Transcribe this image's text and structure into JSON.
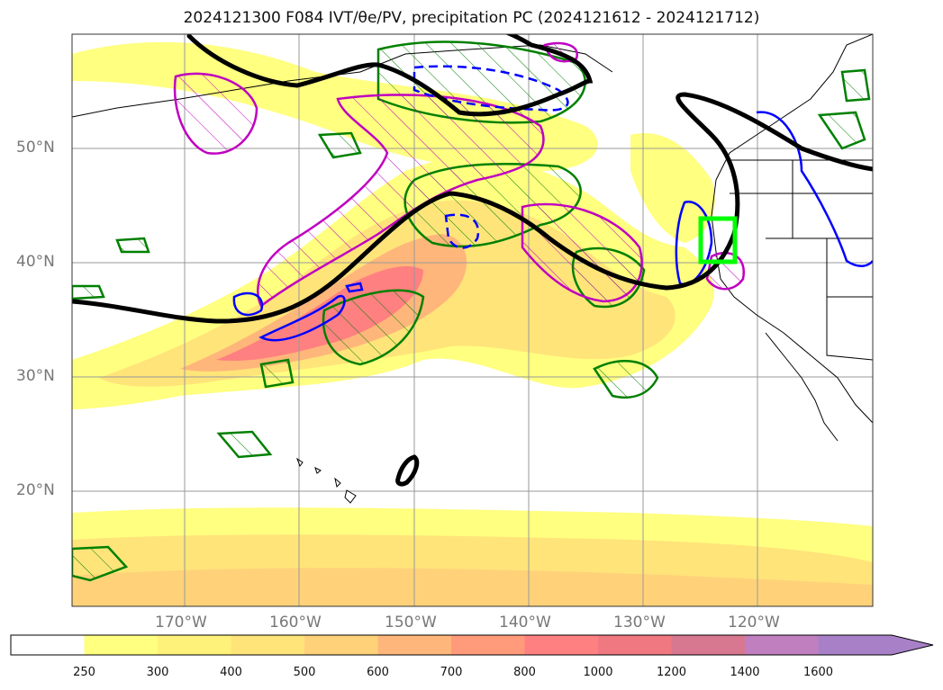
{
  "title": "2024121300 F084 IVT/θe/PV, precipitation PC (2024121612 - 2024121712)",
  "map": {
    "lon_range": [
      -180,
      -110
    ],
    "lat_range": [
      10,
      60
    ],
    "lat_ticks": [
      {
        "value": 50,
        "label": "50°N"
      },
      {
        "value": 40,
        "label": "40°N"
      },
      {
        "value": 30,
        "label": "30°N"
      },
      {
        "value": 20,
        "label": "20°N"
      }
    ],
    "lon_ticks": [
      {
        "value": -170,
        "label": "170°W"
      },
      {
        "value": -160,
        "label": "160°W"
      },
      {
        "value": -150,
        "label": "150°W"
      },
      {
        "value": -140,
        "label": "140°W"
      },
      {
        "value": -130,
        "label": "130°W"
      },
      {
        "value": -120,
        "label": "120°W"
      }
    ],
    "grid": true,
    "highlight_box": {
      "lon": [
        -125,
        -122
      ],
      "lat": [
        40,
        44
      ],
      "color": "#00ff00"
    }
  },
  "colorbar": {
    "labels": [
      "250",
      "300",
      "400",
      "500",
      "600",
      "700",
      "800",
      "1000",
      "1200",
      "1400",
      "1600"
    ],
    "colors": [
      "#ffff80",
      "#fff27a",
      "#ffe47a",
      "#ffd27a",
      "#ffb67a",
      "#ff9a7a",
      "#ff8080",
      "#f07880",
      "#d87890",
      "#c080c0",
      "#a880c8"
    ],
    "extend": "max"
  },
  "colors": {
    "ivt_fill": "#ffe47a",
    "theta_e_contour": "#000000",
    "pv_positive": "#0000ff",
    "precip_pc_green": "#008000",
    "precip_pc_magenta": "#c000c0",
    "coastline": "#000000"
  }
}
